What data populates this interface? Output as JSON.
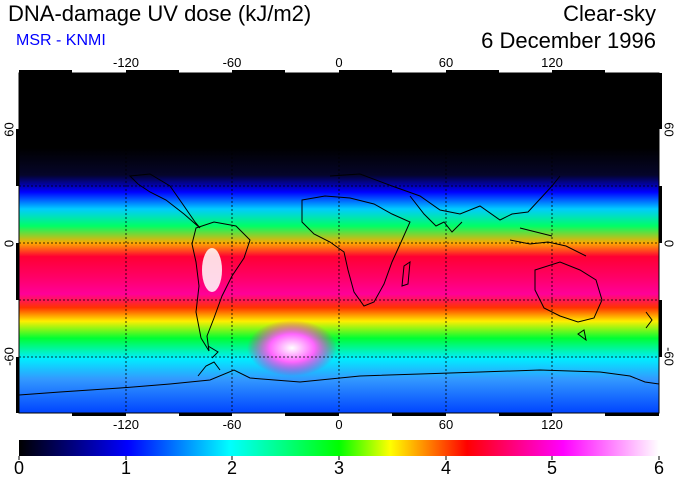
{
  "header": {
    "title": "DNA-damage UV dose (kJ/m2)",
    "credit": "MSR - KNMI",
    "sky_condition": "Clear-sky",
    "date": "6 December 1996"
  },
  "map": {
    "projection": "equirectangular",
    "lon_range": [
      -180,
      180
    ],
    "lat_range": [
      -90,
      90
    ],
    "lon_ticks_top": [
      "-120",
      "-60",
      "0",
      "60",
      "120"
    ],
    "lon_ticks_bottom": [
      "-120",
      "-60",
      "0",
      "60",
      "120"
    ],
    "lat_ticks_left": [
      "60",
      "0",
      "-60"
    ],
    "lat_ticks_right": [
      "60",
      "0",
      "-60"
    ],
    "gridlines": "dashed, every 30 degrees"
  },
  "colorbar": {
    "min": 0,
    "max": 6,
    "labels": [
      "0",
      "1",
      "2",
      "3",
      "4",
      "5",
      "6"
    ],
    "colors": [
      "#000000",
      "#0000ff",
      "#00ffff",
      "#00ff00",
      "#ffff00",
      "#ff0000",
      "#ff00ff",
      "#ffffff"
    ]
  }
}
